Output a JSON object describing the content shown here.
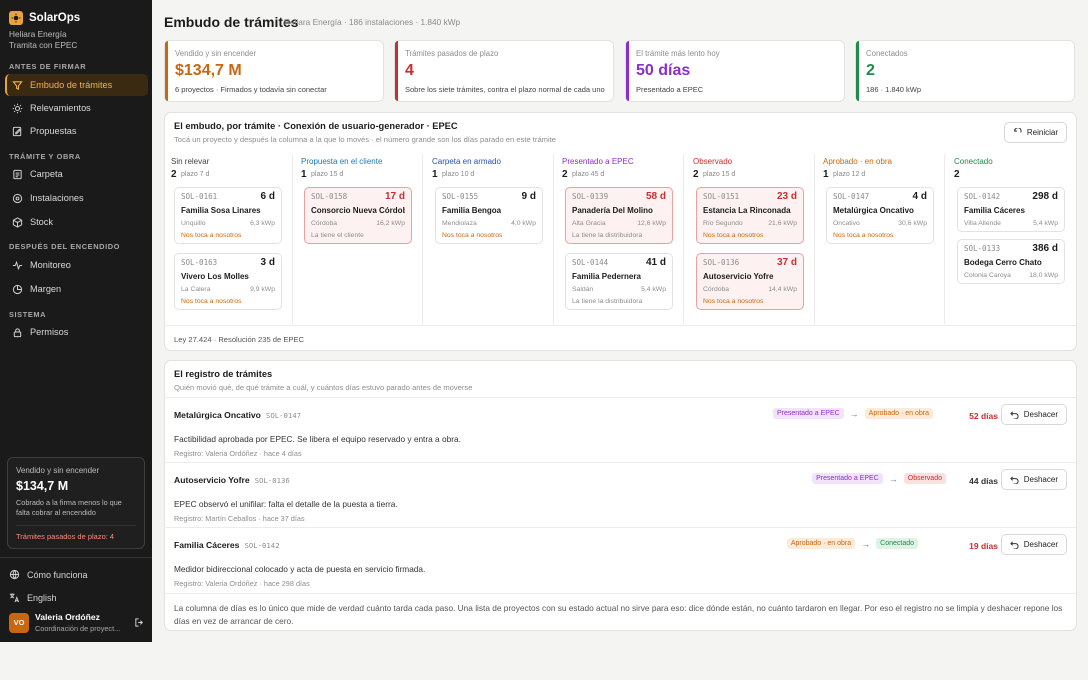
{
  "sidebar": {
    "brand": "SolarOps",
    "org_line1": "Heliara Energía",
    "org_line2": "Tramita con EPEC",
    "sections": [
      "ANTES DE FIRMAR",
      "TRÁMITE Y OBRA",
      "DESPUÉS DEL ENCENDIDO",
      "SISTEMA"
    ],
    "items": [
      {
        "label": "Embudo de trámites",
        "icon": "funnel-icon",
        "active": true
      },
      {
        "label": "Relevamientos",
        "icon": "sun-icon"
      },
      {
        "label": "Propuestas",
        "icon": "document-edit-icon"
      },
      {
        "label": "Carpeta",
        "icon": "folder-icon"
      },
      {
        "label": "Instalaciones",
        "icon": "solar-panel-icon"
      },
      {
        "label": "Stock",
        "icon": "box-icon"
      },
      {
        "label": "Monitoreo",
        "icon": "activity-icon"
      },
      {
        "label": "Margen",
        "icon": "chart-pie-icon"
      },
      {
        "label": "Permisos",
        "icon": "lock-icon"
      }
    ],
    "card": {
      "label": "Vendido y sin encender",
      "value": "$134,7 M",
      "desc": "Cobrado a la firma menos lo que falta cobrar al encendido",
      "warn": "Trámites pasados de plazo: 4"
    },
    "help": "Cómo funciona",
    "language": "English",
    "user": {
      "initials": "VO",
      "name": "Valeria Ordóñez",
      "role": "Coordinación de proyect..."
    }
  },
  "header": {
    "title": "Embudo de trámites",
    "subtitle": "Heliara Energía · 186 instalaciones · 1.840 kWp"
  },
  "kpis": [
    {
      "label": "Vendido y sin encender",
      "value": "$134,7 M",
      "desc": "6 proyectos · Firmados y todavía sin conectar",
      "color": "#c9670f"
    },
    {
      "label": "Trámites pasados de plazo",
      "value": "4",
      "desc": "Sobre los siete trámites, contra el plazo normal de cada uno",
      "color": "#c92f2f"
    },
    {
      "label": "El trámite más lento hoy",
      "value": "50 días",
      "desc": "Presentado a EPEC",
      "color": "#8b2fc9"
    },
    {
      "label": "Conectados",
      "value": "2",
      "desc": "186 · 1.840 kWp",
      "color": "#1f8a4c"
    }
  ],
  "funnel": {
    "title": "El embudo, por trámite · Conexión de usuario-generador · EPEC",
    "subtitle": "Tocá un proyecto y después la columna a la que lo movés · el número grande son los días parado en este trámite",
    "reset_label": "Reiniciar",
    "footnote": "Ley 27.424 · Resolución 235 de EPEC",
    "columns": [
      {
        "name": "Sin relevar",
        "count": "2",
        "sla": "plazo 7 d",
        "color": "#444444",
        "cards": [
          {
            "code": "SOL-0161",
            "days": "6 d",
            "name": "Familia Sosa Linares",
            "place": "Unquillo",
            "kwp": "6,3 kWp",
            "who": "Nos toca a nosotros",
            "late": false
          },
          {
            "code": "SOL-0163",
            "days": "3 d",
            "name": "Vivero Los Molles",
            "place": "La Calera",
            "kwp": "9,9 kWp",
            "who": "Nos toca a nosotros",
            "late": false
          }
        ]
      },
      {
        "name": "Propuesta en el cliente",
        "count": "1",
        "sla": "plazo 15 d",
        "color": "#1f78b4",
        "cards": [
          {
            "code": "SOL-0158",
            "days": "17 d",
            "name": "Consorcio Nueva Córdoba",
            "place": "Córdoba",
            "kwp": "16,2 kWp",
            "who": "La tiene el cliente",
            "late": true
          }
        ]
      },
      {
        "name": "Carpeta en armado",
        "count": "1",
        "sla": "plazo 10 d",
        "color": "#2a4fb0",
        "cards": [
          {
            "code": "SOL-0155",
            "days": "9 d",
            "name": "Familia Bengoa",
            "place": "Mendiolaza",
            "kwp": "4,0 kWp",
            "who": "Nos toca a nosotros",
            "late": false
          }
        ]
      },
      {
        "name": "Presentado a EPEC",
        "count": "2",
        "sla": "plazo 45 d",
        "color": "#8b2fc9",
        "cards": [
          {
            "code": "SOL-0139",
            "days": "58 d",
            "name": "Panadería Del Molino",
            "place": "Alta Gracia",
            "kwp": "12,6 kWp",
            "who": "La tiene la distribuidora",
            "late": true
          },
          {
            "code": "SOL-0144",
            "days": "41 d",
            "name": "Familia Pedernera",
            "place": "Saldán",
            "kwp": "5,4 kWp",
            "who": "La tiene la distribuidora",
            "late": false
          }
        ]
      },
      {
        "name": "Observado",
        "count": "2",
        "sla": "plazo 15 d",
        "color": "#c92f2f",
        "cards": [
          {
            "code": "SOL-0151",
            "days": "23 d",
            "name": "Estancia La Rinconada",
            "place": "Río Segundo",
            "kwp": "21,6 kWp",
            "who": "Nos toca a nosotros",
            "late": true
          },
          {
            "code": "SOL-0136",
            "days": "37 d",
            "name": "Autoservicio Yofre",
            "place": "Córdoba",
            "kwp": "14,4 kWp",
            "who": "Nos toca a nosotros",
            "late": true
          }
        ]
      },
      {
        "name": "Aprobado · en obra",
        "count": "1",
        "sla": "plazo 12 d",
        "color": "#c9670f",
        "cards": [
          {
            "code": "SOL-0147",
            "days": "4 d",
            "name": "Metalúrgica Oncativo",
            "place": "Oncativo",
            "kwp": "30,6 kWp",
            "who": "Nos toca a nosotros",
            "late": false
          }
        ]
      },
      {
        "name": "Conectado",
        "count": "2",
        "sla": "",
        "color": "#1f8a4c",
        "cards": [
          {
            "code": "SOL-0142",
            "days": "298 d",
            "name": "Familia Cáceres",
            "place": "Villa Allende",
            "kwp": "5,4 kWp",
            "who": "",
            "late": false
          },
          {
            "code": "SOL-0133",
            "days": "386 d",
            "name": "Bodega Cerro Chato",
            "place": "Colonia Caroya",
            "kwp": "18,0 kWp",
            "who": "",
            "late": false
          }
        ]
      }
    ]
  },
  "log": {
    "title": "El registro de trámites",
    "subtitle": "Quién movió qué, de qué trámite a cuál, y cuántos días estuvo parado antes de moverse",
    "undo_label": "Deshacer",
    "footnote": "La columna de días es lo único que mide de verdad cuánto tarda cada paso. Una lista de proyectos con su estado actual no sirve para eso: dice dónde están, no cuánto tardaron en llegar. Por eso el registro no se limpia y deshacer repone los días en vez de arrancar de cero.",
    "entries": [
      {
        "name": "Metalúrgica Oncativo",
        "code": "SOL-0147",
        "from": "Presentado a EPEC",
        "to": "Aprobado · en obra",
        "days": "52 días",
        "days_color": "#c92f2f",
        "text": "Factibilidad aprobada por EPEC. Se libera el equipo reservado y entra a obra.",
        "who": "Registro: Valeria Ordóñez · hace 4 días"
      },
      {
        "name": "Autoservicio Yofre",
        "code": "SOL-0136",
        "from": "Presentado a EPEC",
        "to": "Observado",
        "days": "44 días",
        "days_color": "#333333",
        "text": "EPEC observó el unifilar: falta el detalle de la puesta a tierra.",
        "who": "Registro: Martín Ceballos · hace 37 días"
      },
      {
        "name": "Familia Cáceres",
        "code": "SOL-0142",
        "from": "Aprobado · en obra",
        "to": "Conectado",
        "days": "19 días",
        "days_color": "#c92f2f",
        "text": "Medidor bidireccional colocado y acta de puesta en servicio firmada.",
        "who": "Registro: Valeria Ordóñez · hace 298 días"
      }
    ]
  }
}
